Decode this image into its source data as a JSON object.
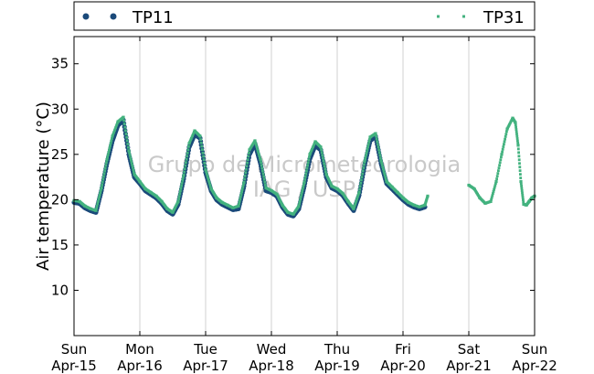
{
  "chart_data": {
    "type": "scatter",
    "ylabel": "Air temperature (°C)",
    "ylim": [
      5,
      38
    ],
    "yticks": [
      10,
      15,
      20,
      25,
      30,
      35
    ],
    "xlim": [
      "2012-04-15 00:00",
      "2012-04-22 00:00"
    ],
    "xticks": [
      {
        "day": "Sun",
        "date": "Apr-15"
      },
      {
        "day": "Mon",
        "date": "Apr-16"
      },
      {
        "day": "Tue",
        "date": "Apr-17"
      },
      {
        "day": "Wed",
        "date": "Apr-18"
      },
      {
        "day": "Thu",
        "date": "Apr-19"
      },
      {
        "day": "Fri",
        "date": "Apr-20"
      },
      {
        "day": "Sat",
        "date": "Apr-21"
      },
      {
        "day": "Sun",
        "date": "Apr-22"
      }
    ],
    "grid": "vertical",
    "legend_position": "top",
    "watermark": [
      "Grupo de Micrometeorologia",
      "IAG / USP"
    ],
    "series": [
      {
        "name": "TP11",
        "color": "#1b4a7a",
        "marker": "dot",
        "x": [
          "04-15 00:00",
          "04-15 02:00",
          "04-15 04:00",
          "04-15 06:00",
          "04-15 08:00",
          "04-15 10:00",
          "04-15 12:00",
          "04-15 14:00",
          "04-15 16:00",
          "04-15 18:00",
          "04-15 20:00",
          "04-15 22:00",
          "04-16 00:00",
          "04-16 02:00",
          "04-16 04:00",
          "04-16 06:00",
          "04-16 08:00",
          "04-16 10:00",
          "04-16 12:00",
          "04-16 14:00",
          "04-16 16:00",
          "04-16 18:00",
          "04-16 20:00",
          "04-16 22:00",
          "04-17 00:00",
          "04-17 02:00",
          "04-17 04:00",
          "04-17 06:00",
          "04-17 08:00",
          "04-17 10:00",
          "04-17 12:00",
          "04-17 14:00",
          "04-17 16:00",
          "04-17 18:00",
          "04-17 20:00",
          "04-17 22:00",
          "04-18 00:00",
          "04-18 02:00",
          "04-18 04:00",
          "04-18 06:00",
          "04-18 08:00",
          "04-18 10:00",
          "04-18 12:00",
          "04-18 14:00",
          "04-18 16:00",
          "04-18 18:00",
          "04-18 20:00",
          "04-18 22:00",
          "04-19 00:00",
          "04-19 02:00",
          "04-19 04:00",
          "04-19 06:00",
          "04-19 08:00",
          "04-19 10:00",
          "04-19 12:00",
          "04-19 14:00",
          "04-19 16:00",
          "04-19 18:00",
          "04-19 20:00",
          "04-19 22:00",
          "04-20 00:00",
          "04-20 02:00",
          "04-20 04:00",
          "04-20 06:00",
          "04-20 08:00"
        ],
        "y": [
          19.7,
          19.6,
          19.1,
          18.8,
          18.6,
          21.0,
          24.0,
          26.5,
          28.2,
          28.8,
          25.0,
          22.5,
          21.8,
          21.0,
          20.6,
          20.2,
          19.6,
          18.8,
          18.4,
          19.5,
          22.3,
          25.8,
          27.2,
          26.8,
          23.0,
          21.0,
          20.0,
          19.5,
          19.2,
          18.9,
          19.0,
          21.5,
          25.0,
          26.2,
          24.0,
          21.0,
          20.8,
          20.4,
          19.2,
          18.4,
          18.2,
          19.0,
          21.5,
          24.5,
          26.0,
          25.5,
          22.5,
          21.3,
          21.0,
          20.5,
          19.6,
          18.8,
          20.5,
          23.8,
          26.5,
          27.0,
          24.0,
          21.8,
          21.2,
          20.6,
          20.0,
          19.5,
          19.2,
          19.0,
          19.2
        ]
      },
      {
        "name": "TP31",
        "color": "#43b27f",
        "marker": "small-square",
        "x": [
          "04-15 00:00",
          "04-15 02:00",
          "04-15 04:00",
          "04-15 06:00",
          "04-15 08:00",
          "04-15 10:00",
          "04-15 12:00",
          "04-15 14:00",
          "04-15 16:00",
          "04-15 18:00",
          "04-15 20:00",
          "04-15 22:00",
          "04-16 00:00",
          "04-16 02:00",
          "04-16 04:00",
          "04-16 06:00",
          "04-16 08:00",
          "04-16 10:00",
          "04-16 12:00",
          "04-16 14:00",
          "04-16 16:00",
          "04-16 18:00",
          "04-16 20:00",
          "04-16 22:00",
          "04-17 00:00",
          "04-17 02:00",
          "04-17 04:00",
          "04-17 06:00",
          "04-17 08:00",
          "04-17 10:00",
          "04-17 12:00",
          "04-17 14:00",
          "04-17 16:00",
          "04-17 18:00",
          "04-17 20:00",
          "04-17 22:00",
          "04-18 00:00",
          "04-18 02:00",
          "04-18 04:00",
          "04-18 06:00",
          "04-18 08:00",
          "04-18 10:00",
          "04-18 12:00",
          "04-18 14:00",
          "04-18 16:00",
          "04-18 18:00",
          "04-18 20:00",
          "04-18 22:00",
          "04-19 00:00",
          "04-19 02:00",
          "04-19 04:00",
          "04-19 06:00",
          "04-19 08:00",
          "04-19 10:00",
          "04-19 12:00",
          "04-19 14:00",
          "04-19 16:00",
          "04-19 18:00",
          "04-19 20:00",
          "04-19 22:00",
          "04-20 00:00",
          "04-20 02:00",
          "04-20 04:00",
          "04-20 06:00",
          "04-20 08:00",
          "04-20 09:00",
          "04-21 00:00",
          "04-21 02:00",
          "04-21 04:00",
          "04-21 06:00",
          "04-21 08:00",
          "04-21 10:00",
          "04-21 12:00",
          "04-21 14:00",
          "04-21 16:00",
          "04-21 17:00",
          "04-21 18:00",
          "04-21 19:00",
          "04-21 20:00",
          "04-21 21:00",
          "04-21 22:00",
          "04-21 23:00",
          "04-22 00:00"
        ],
        "y": [
          19.9,
          19.8,
          19.3,
          19.0,
          18.8,
          21.3,
          24.4,
          27.0,
          28.6,
          29.1,
          25.4,
          22.8,
          22.0,
          21.2,
          20.8,
          20.4,
          19.8,
          19.0,
          18.6,
          19.8,
          22.7,
          26.2,
          27.6,
          27.0,
          23.3,
          21.2,
          20.2,
          19.7,
          19.4,
          19.1,
          19.3,
          21.9,
          25.5,
          26.5,
          24.4,
          21.3,
          21.0,
          20.6,
          19.4,
          18.6,
          18.4,
          19.3,
          21.9,
          25.0,
          26.4,
          25.8,
          22.8,
          21.5,
          21.2,
          20.7,
          19.8,
          19.0,
          20.8,
          24.2,
          26.9,
          27.3,
          24.3,
          22.0,
          21.4,
          20.8,
          20.2,
          19.7,
          19.4,
          19.2,
          19.4,
          20.4,
          21.6,
          21.2,
          20.2,
          19.6,
          19.8,
          22.0,
          25.0,
          27.8,
          29.0,
          28.5,
          26.0,
          22.0,
          19.5,
          19.4,
          19.8,
          20.2,
          20.4
        ]
      }
    ]
  }
}
